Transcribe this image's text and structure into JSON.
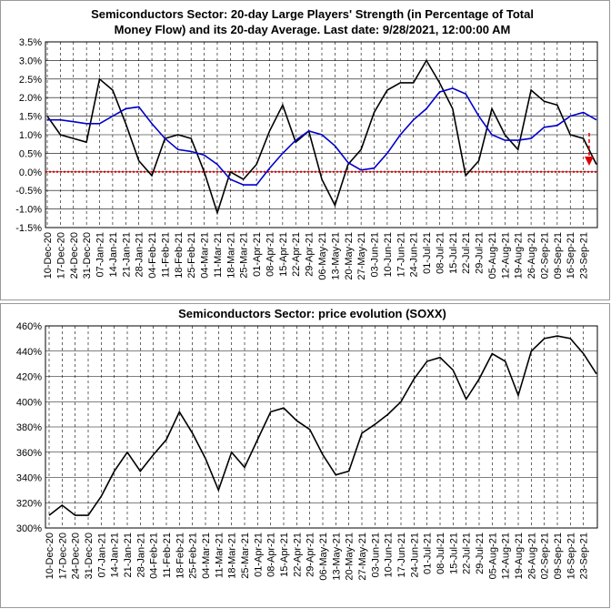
{
  "chart_data": [
    {
      "type": "line",
      "title": [
        "Semiconductors Sector: 20-day Large Players' Strength (in Percentage of Total",
        "Money Flow) and its 20-day Average. Last date: 9/28/2021, 12:00:00 AM"
      ],
      "categories": [
        "10-Dec-20",
        "17-Dec-20",
        "24-Dec-20",
        "31-Dec-20",
        "07-Jan-21",
        "14-Jan-21",
        "21-Jan-21",
        "28-Jan-21",
        "04-Feb-21",
        "11-Feb-21",
        "18-Feb-21",
        "25-Feb-21",
        "04-Mar-21",
        "11-Mar-21",
        "18-Mar-21",
        "25-Mar-21",
        "01-Apr-21",
        "08-Apr-21",
        "15-Apr-21",
        "22-Apr-21",
        "29-Apr-21",
        "06-May-21",
        "13-May-21",
        "20-May-21",
        "27-May-21",
        "03-Jun-21",
        "10-Jun-21",
        "17-Jun-21",
        "24-Jun-21",
        "01-Jul-21",
        "08-Jul-21",
        "15-Jul-21",
        "22-Jul-21",
        "29-Jul-21",
        "05-Aug-21",
        "12-Aug-21",
        "19-Aug-21",
        "26-Aug-21",
        "02-Sep-21",
        "09-Sep-21",
        "16-Sep-21",
        "23-Sep-21",
        null
      ],
      "series": [
        {
          "name": "Large Players' Strength",
          "color": "#000000",
          "values": [
            1.5,
            1.0,
            0.9,
            0.8,
            2.5,
            2.2,
            1.3,
            0.3,
            -0.1,
            0.9,
            1.0,
            0.9,
            0.0,
            -1.1,
            0.0,
            -0.2,
            0.2,
            1.1,
            1.8,
            0.8,
            1.1,
            -0.2,
            -0.9,
            0.2,
            0.6,
            1.6,
            2.2,
            2.4,
            2.4,
            3.0,
            2.4,
            1.7,
            -0.1,
            0.3,
            1.7,
            1.0,
            0.6,
            2.2,
            1.9,
            1.8,
            1.0,
            0.9,
            0.2
          ]
        },
        {
          "name": "20-day Average",
          "color": "#0000cc",
          "values": [
            1.4,
            1.4,
            1.35,
            1.3,
            1.3,
            1.5,
            1.7,
            1.75,
            1.3,
            0.9,
            0.6,
            0.55,
            0.45,
            0.2,
            -0.2,
            -0.35,
            -0.35,
            0.1,
            0.5,
            0.85,
            1.1,
            1.0,
            0.7,
            0.25,
            0.05,
            0.1,
            0.5,
            1.0,
            1.4,
            1.7,
            2.15,
            2.25,
            2.1,
            1.5,
            1.0,
            0.85,
            0.85,
            0.9,
            1.2,
            1.25,
            1.5,
            1.6,
            1.4
          ]
        }
      ],
      "ylim": [
        -1.5,
        3.5
      ],
      "yticks": [
        {
          "value": 3.5,
          "label": "3.5%"
        },
        {
          "value": 3.0,
          "label": "3.0%"
        },
        {
          "value": 2.5,
          "label": "2.5%"
        },
        {
          "value": 2.0,
          "label": "2.0%"
        },
        {
          "value": 1.5,
          "label": "1.5%"
        },
        {
          "value": 1.0,
          "label": "1.0%"
        },
        {
          "value": 0.5,
          "label": "0.5%"
        },
        {
          "value": 0.0,
          "label": "0.0%"
        },
        {
          "value": -0.5,
          "label": "-0.5%"
        },
        {
          "value": -1.0,
          "label": "-1.0%"
        },
        {
          "value": -1.5,
          "label": "-1.5%"
        }
      ],
      "grid": true,
      "reference_line": {
        "value": 0,
        "color": "#dd0000"
      }
    },
    {
      "type": "line",
      "title": [
        "Semiconductors Sector: price evolution (SOXX)"
      ],
      "categories": [
        "10-Dec-20",
        "17-Dec-20",
        "24-Dec-20",
        "31-Dec-20",
        "07-Jan-21",
        "14-Jan-21",
        "21-Jan-21",
        "28-Jan-21",
        "04-Feb-21",
        "11-Feb-21",
        "18-Feb-21",
        "25-Feb-21",
        "04-Mar-21",
        "11-Mar-21",
        "18-Mar-21",
        "25-Mar-21",
        "01-Apr-21",
        "08-Apr-21",
        "15-Apr-21",
        "22-Apr-21",
        "29-Apr-21",
        "06-May-21",
        "13-May-21",
        "20-May-21",
        "27-May-21",
        "03-Jun-21",
        "10-Jun-21",
        "17-Jun-21",
        "24-Jun-21",
        "01-Jul-21",
        "08-Jul-21",
        "15-Jul-21",
        "22-Jul-21",
        "29-Jul-21",
        "05-Aug-21",
        "12-Aug-21",
        "19-Aug-21",
        "26-Aug-21",
        "02-Sep-21",
        "09-Sep-21",
        "16-Sep-21",
        "23-Sep-21",
        null
      ],
      "series": [
        {
          "name": "SOXX",
          "color": "#000000",
          "values": [
            310,
            318,
            310,
            310,
            325,
            345,
            360,
            345,
            358,
            370,
            392,
            375,
            355,
            330,
            360,
            348,
            370,
            392,
            395,
            385,
            378,
            358,
            342,
            345,
            375,
            382,
            390,
            400,
            418,
            432,
            435,
            425,
            402,
            418,
            438,
            432,
            405,
            440,
            450,
            452,
            450,
            438,
            422
          ]
        }
      ],
      "ylim": [
        300,
        460
      ],
      "yticks": [
        {
          "value": 460,
          "label": "460%"
        },
        {
          "value": 440,
          "label": "440%"
        },
        {
          "value": 420,
          "label": "420%"
        },
        {
          "value": 400,
          "label": "400%"
        },
        {
          "value": 380,
          "label": "380%"
        },
        {
          "value": 360,
          "label": "360%"
        },
        {
          "value": 340,
          "label": "340%"
        },
        {
          "value": 320,
          "label": "320%"
        },
        {
          "value": 300,
          "label": "300%"
        }
      ],
      "grid": true
    }
  ]
}
